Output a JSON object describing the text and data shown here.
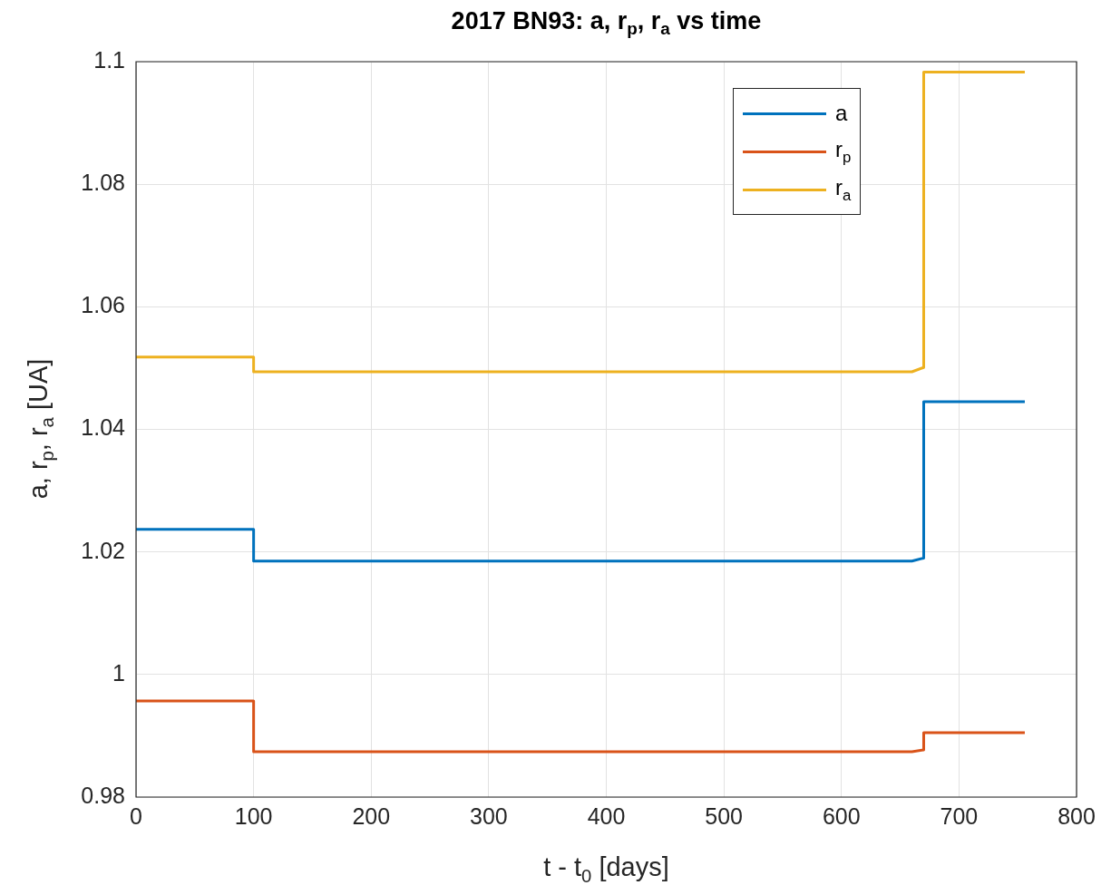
{
  "chart_data": {
    "type": "line",
    "title": "2017 BN93: a, r$_{p}$, r$_{a}$ vs time",
    "xlabel": "t - t$_{0}$ [days]",
    "ylabel": "a, r$_{p}$, r$_{a}$ [UA]",
    "x": [
      0,
      100,
      100,
      660,
      670,
      670,
      756
    ],
    "series": [
      {
        "name": "a",
        "color": "#0072bd",
        "values": [
          1.0237,
          1.0237,
          1.0185,
          1.0185,
          1.019,
          1.0445,
          1.0445
        ]
      },
      {
        "name": "r$_{p}$",
        "color": "#d95319",
        "values": [
          0.9957,
          0.9957,
          0.9874,
          0.9874,
          0.9877,
          0.9905,
          0.9905
        ]
      },
      {
        "name": "r$_{a}$",
        "color": "#edb120",
        "values": [
          1.0518,
          1.0518,
          1.0494,
          1.0494,
          1.0501,
          1.0983,
          1.0983
        ]
      }
    ],
    "xlim": [
      0,
      800
    ],
    "xticks": [
      0,
      100,
      200,
      300,
      400,
      500,
      600,
      700,
      800
    ],
    "ylim": [
      0.98,
      1.1
    ],
    "yticks": [
      0.98,
      1,
      1.02,
      1.04,
      1.06,
      1.08,
      1.1
    ],
    "grid": true,
    "legend": "top right",
    "marker": "none"
  }
}
